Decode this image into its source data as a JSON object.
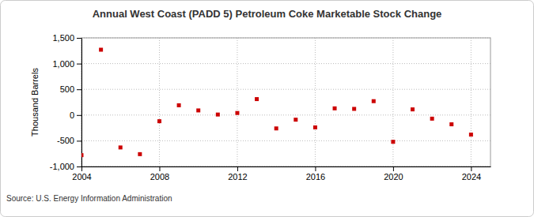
{
  "chart_data": {
    "type": "scatter",
    "title": "Annual West Coast (PADD 5) Petroleum Coke Marketable Stock Change",
    "y_label": "Thousand Barrels",
    "source": "Source: U.S. Energy Information Administration",
    "x": [
      2004,
      2005,
      2006,
      2007,
      2008,
      2009,
      2010,
      2011,
      2012,
      2013,
      2014,
      2015,
      2016,
      2017,
      2018,
      2019,
      2020,
      2021,
      2022,
      2023,
      2024
    ],
    "values": [
      -780,
      1270,
      -630,
      -760,
      -120,
      190,
      90,
      10,
      40,
      310,
      -260,
      -90,
      -240,
      130,
      120,
      270,
      -520,
      110,
      -70,
      -180,
      -380
    ],
    "color": "#cc0000",
    "marker": "square",
    "xlim": [
      2004,
      2025
    ],
    "xticks": [
      2004,
      2008,
      2012,
      2016,
      2020,
      2024
    ],
    "ylim": [
      -1000,
      1500
    ],
    "yticks": [
      {
        "value": -1000,
        "label": "-1,000"
      },
      -500,
      0,
      500,
      {
        "value": 1000,
        "label": "1,000"
      },
      {
        "value": 1500,
        "label": "1,500"
      }
    ],
    "grid": true
  }
}
